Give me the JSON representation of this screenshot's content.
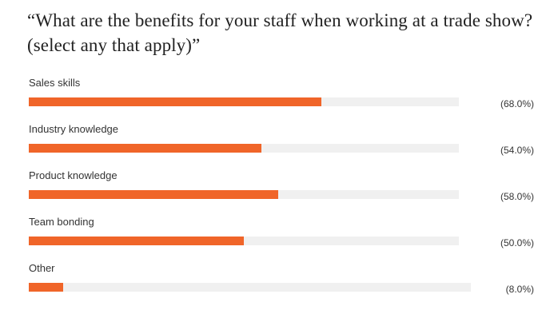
{
  "chart_data": {
    "type": "bar",
    "title": "“What are the benefits for your staff when working at a trade show? (select any that apply)”",
    "categories": [
      "Sales skills",
      "Industry knowledge",
      "Product knowledge",
      "Team bonding",
      "Other"
    ],
    "values": [
      68.0,
      54.0,
      58.0,
      50.0,
      8.0
    ],
    "value_labels": [
      "(68.0%)",
      "(54.0%)",
      "(58.0%)",
      "(50.0%)",
      "(8.0%)"
    ],
    "xlim": [
      0,
      100
    ],
    "colors": {
      "bar": "#f06529",
      "track": "#f0f0f0"
    }
  }
}
